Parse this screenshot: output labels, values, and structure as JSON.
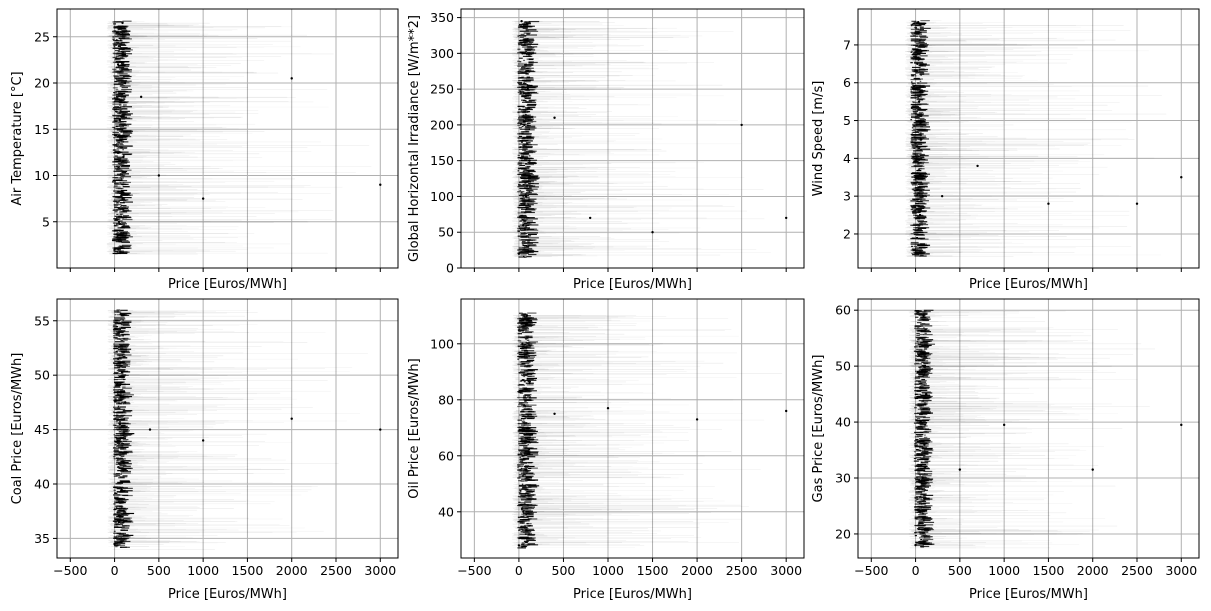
{
  "chart_data": [
    {
      "type": "scatter",
      "xlabel": "Price [Euros/MWh]",
      "ylabel": "Air Temperature [°C]",
      "xlim": [
        -650,
        3200
      ],
      "ylim": [
        0,
        28
      ],
      "xticks": [
        -500,
        0,
        500,
        1000,
        1500,
        2000,
        2500,
        3000
      ],
      "yticks": [
        5,
        10,
        15,
        20,
        25
      ],
      "show_xtick_labels": false,
      "grid": true,
      "y_range_of_data": [
        1.5,
        26.7
      ],
      "x_core_range": [
        -30,
        200
      ],
      "x_tail_max": 3000,
      "points": [
        [
          0,
          2.0
        ],
        [
          50,
          5.0
        ],
        [
          80,
          8.0
        ],
        [
          100,
          12.0
        ],
        [
          60,
          16.0
        ],
        [
          120,
          20.0
        ],
        [
          40,
          22.0
        ],
        [
          90,
          26.5
        ],
        [
          300,
          18.5
        ],
        [
          500,
          10.0
        ],
        [
          1000,
          7.5
        ],
        [
          2000,
          20.5
        ],
        [
          3000,
          9.0
        ]
      ]
    },
    {
      "type": "scatter",
      "xlabel": "Price [Euros/MWh]",
      "ylabel": "Global Horizontal Irradiance [W/m**2]",
      "xlim": [
        -650,
        3200
      ],
      "ylim": [
        0,
        362
      ],
      "xticks": [
        -500,
        0,
        500,
        1000,
        1500,
        2000,
        2500,
        3000
      ],
      "yticks": [
        0,
        50,
        100,
        150,
        200,
        250,
        300,
        350
      ],
      "show_xtick_labels": false,
      "grid": true,
      "y_range_of_data": [
        15,
        345
      ],
      "x_core_range": [
        -20,
        220
      ],
      "x_tail_max": 3000,
      "points": [
        [
          0,
          20
        ],
        [
          50,
          60
        ],
        [
          80,
          100
        ],
        [
          120,
          150
        ],
        [
          60,
          200
        ],
        [
          100,
          250
        ],
        [
          40,
          300
        ],
        [
          30,
          345
        ],
        [
          400,
          210
        ],
        [
          800,
          70
        ],
        [
          1500,
          50
        ],
        [
          2500,
          200
        ],
        [
          3000,
          70
        ]
      ]
    },
    {
      "type": "scatter",
      "xlabel": "Price [Euros/MWh]",
      "ylabel": "Wind Speed [m/s]",
      "xlim": [
        -650,
        3200
      ],
      "ylim": [
        1.1,
        7.95
      ],
      "xticks": [
        -500,
        0,
        500,
        1000,
        1500,
        2000,
        2500,
        3000
      ],
      "yticks": [
        2,
        3,
        4,
        5,
        6,
        7
      ],
      "show_xtick_labels": false,
      "grid": true,
      "y_range_of_data": [
        1.4,
        7.65
      ],
      "x_core_range": [
        -60,
        150
      ],
      "x_tail_max": 3000,
      "points": [
        [
          0,
          1.5
        ],
        [
          50,
          2.5
        ],
        [
          80,
          3.0
        ],
        [
          30,
          3.5
        ],
        [
          60,
          4.5
        ],
        [
          40,
          5.5
        ],
        [
          20,
          6.5
        ],
        [
          30,
          7.6
        ],
        [
          300,
          3.0
        ],
        [
          700,
          3.8
        ],
        [
          1500,
          2.8
        ],
        [
          2500,
          2.8
        ],
        [
          3000,
          3.5
        ]
      ]
    },
    {
      "type": "scatter",
      "xlabel": "Price [Euros/MWh]",
      "ylabel": "Coal Price [Euros/MWh]",
      "xlim": [
        -650,
        3200
      ],
      "ylim": [
        33.2,
        57.0
      ],
      "xticks": [
        -500,
        0,
        500,
        1000,
        1500,
        2000,
        2500,
        3000
      ],
      "yticks": [
        35,
        40,
        45,
        50,
        55
      ],
      "show_xtick_labels": true,
      "grid": true,
      "y_range_of_data": [
        34,
        56
      ],
      "x_core_range": [
        -20,
        200
      ],
      "x_tail_max": 3000,
      "points": [
        [
          0,
          34.5
        ],
        [
          50,
          36.5
        ],
        [
          80,
          39.5
        ],
        [
          100,
          42.0
        ],
        [
          60,
          45.5
        ],
        [
          120,
          47.5
        ],
        [
          40,
          51.5
        ],
        [
          90,
          55.5
        ],
        [
          400,
          45.0
        ],
        [
          1000,
          44.0
        ],
        [
          2000,
          46.0
        ],
        [
          3000,
          45.0
        ]
      ]
    },
    {
      "type": "scatter",
      "xlabel": "Price [Euros/MWh]",
      "ylabel": "Oil Price [Euros/MWh]",
      "xlim": [
        -650,
        3200
      ],
      "ylim": [
        23.5,
        116
      ],
      "xticks": [
        -500,
        0,
        500,
        1000,
        1500,
        2000,
        2500,
        3000
      ],
      "yticks": [
        40,
        60,
        80,
        100
      ],
      "show_xtick_labels": true,
      "grid": true,
      "y_range_of_data": [
        27,
        111
      ],
      "x_core_range": [
        -20,
        220
      ],
      "x_tail_max": 3000,
      "points": [
        [
          0,
          28
        ],
        [
          50,
          40
        ],
        [
          80,
          55
        ],
        [
          100,
          70
        ],
        [
          60,
          78
        ],
        [
          120,
          86
        ],
        [
          40,
          100
        ],
        [
          90,
          110
        ],
        [
          400,
          75
        ],
        [
          1000,
          77
        ],
        [
          2000,
          73
        ],
        [
          3000,
          76
        ]
      ]
    },
    {
      "type": "scatter",
      "xlabel": "Price [Euros/MWh]",
      "ylabel": "Gas Price [Euros/MWh]",
      "xlim": [
        -650,
        3200
      ],
      "ylim": [
        15.7,
        62.0
      ],
      "xticks": [
        -500,
        0,
        500,
        1000,
        1500,
        2000,
        2500,
        3000
      ],
      "yticks": [
        20,
        30,
        40,
        50,
        60
      ],
      "show_xtick_labels": true,
      "grid": true,
      "y_range_of_data": [
        17.5,
        60
      ],
      "x_core_range": [
        -20,
        200
      ],
      "x_tail_max": 3000,
      "points": [
        [
          0,
          18
        ],
        [
          50,
          24
        ],
        [
          80,
          30
        ],
        [
          100,
          36
        ],
        [
          60,
          40
        ],
        [
          120,
          45
        ],
        [
          40,
          52
        ],
        [
          90,
          59
        ],
        [
          500,
          31.5
        ],
        [
          1000,
          39.5
        ],
        [
          2000,
          31.5
        ],
        [
          3000,
          39.5
        ]
      ]
    }
  ],
  "colors": {
    "points": "#000000",
    "grid": "#b0b0b0",
    "axes": "#000000",
    "background": "#ffffff"
  }
}
